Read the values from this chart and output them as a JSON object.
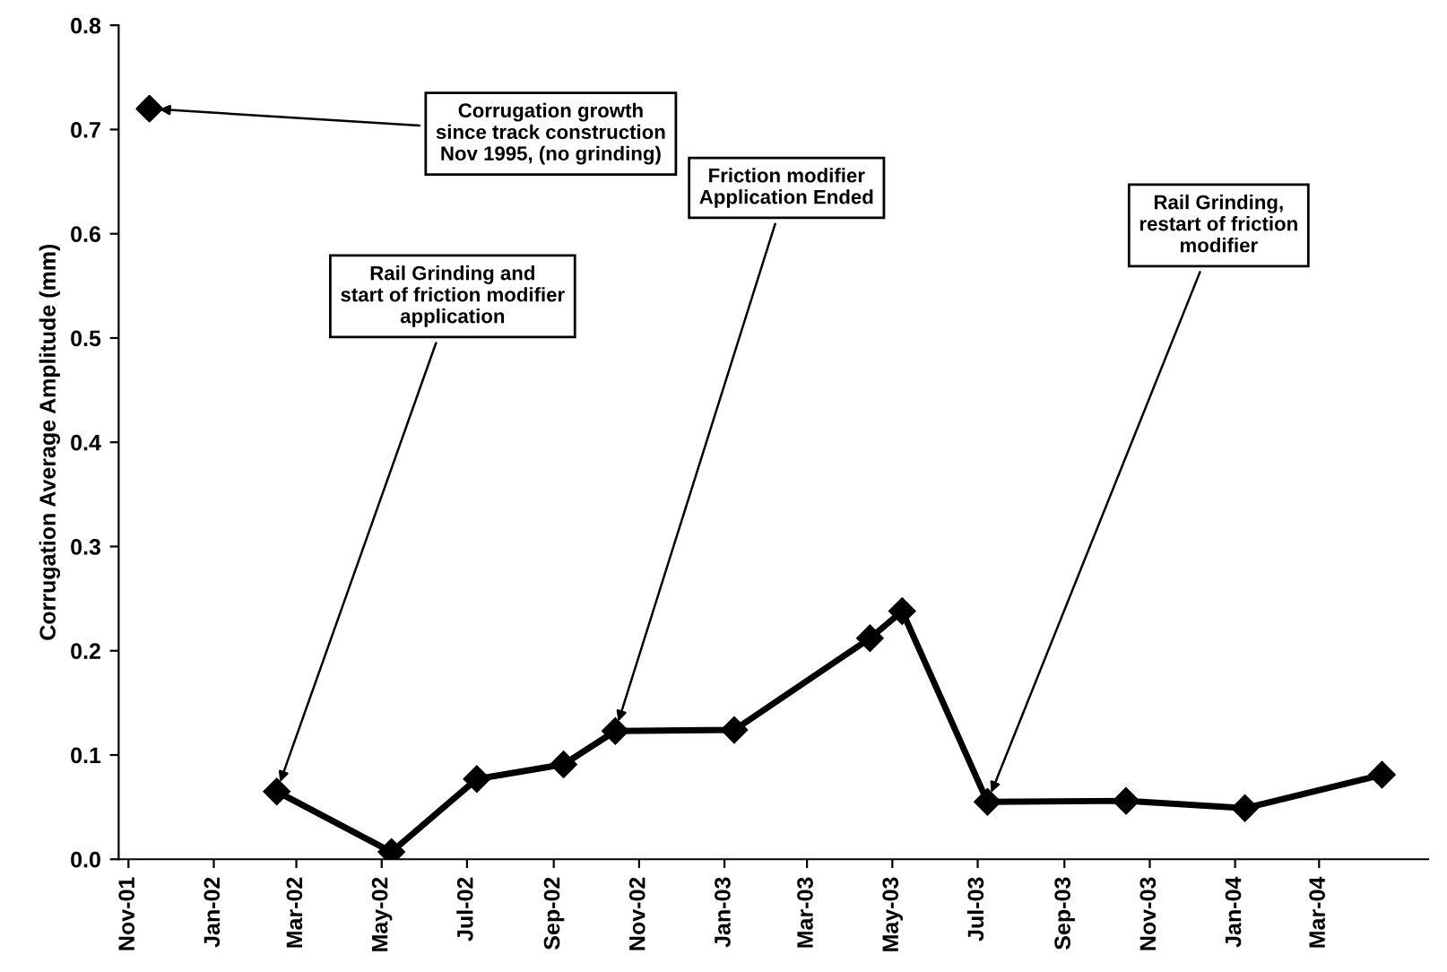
{
  "chart_data": {
    "type": "line",
    "ylabel": "Corrugation Average Amplitude (mm)",
    "xlim": [
      "2001-10-25",
      "2004-05-18"
    ],
    "xticks": [
      {
        "value": "2001-11-01",
        "label": "Nov-01"
      },
      {
        "value": "2002-01-01",
        "label": "Jan-02"
      },
      {
        "value": "2002-03-01",
        "label": "Mar-02"
      },
      {
        "value": "2002-05-01",
        "label": "May-02"
      },
      {
        "value": "2002-07-01",
        "label": "Jul-02"
      },
      {
        "value": "2002-09-01",
        "label": "Sep-02"
      },
      {
        "value": "2002-11-01",
        "label": "Nov-02"
      },
      {
        "value": "2003-01-01",
        "label": "Jan-03"
      },
      {
        "value": "2003-03-01",
        "label": "Mar-03"
      },
      {
        "value": "2003-05-01",
        "label": "May-03"
      },
      {
        "value": "2003-07-01",
        "label": "Jul-03"
      },
      {
        "value": "2003-09-01",
        "label": "Sep-03"
      },
      {
        "value": "2003-11-01",
        "label": "Nov-03"
      },
      {
        "value": "2004-01-01",
        "label": "Jan-04"
      },
      {
        "value": "2004-03-01",
        "label": "Mar-04"
      }
    ],
    "ylim": [
      0,
      0.8
    ],
    "yticks": [
      {
        "value": 0,
        "label": "0.0"
      },
      0.1,
      0.2,
      0.3,
      0.4,
      0.5,
      0.6,
      0.7,
      0.8
    ],
    "marker": "diamond",
    "line_style": "solid",
    "grid": false,
    "legend": false,
    "series": [
      {
        "type": "scatter",
        "color": "#000000",
        "x": [
          "2001-11-16"
        ],
        "values": [
          0.72
        ]
      },
      {
        "color": "#000000",
        "x": [
          "2002-02-15",
          "2002-05-08",
          "2002-07-08",
          "2002-09-08",
          "2002-10-15",
          "2003-01-08",
          "2003-04-15",
          "2003-05-08",
          "2003-07-08",
          "2003-10-15",
          "2004-01-08",
          "2004-04-15"
        ],
        "values": [
          0.065,
          0.007,
          0.077,
          0.091,
          0.123,
          0.124,
          0.212,
          0.238,
          0.055,
          0.056,
          0.049,
          0.081
        ]
      }
    ],
    "annotations": [
      {
        "text": "Corrugation growth\nsince track construction\nNov 1995, (no grinding)",
        "x": "2001-11-16",
        "y": 0.72
      },
      {
        "text": "Rail Grinding and\nstart of friction modifier\napplication",
        "x": "2002-02-15",
        "y": 0.065
      },
      {
        "text": "Friction modifier\nApplication Ended",
        "x": "2002-10-15",
        "y": 0.123
      },
      {
        "text": "Rail Grinding,\nrestart of friction\nmodifier",
        "x": "2003-07-08",
        "y": 0.055
      }
    ]
  }
}
